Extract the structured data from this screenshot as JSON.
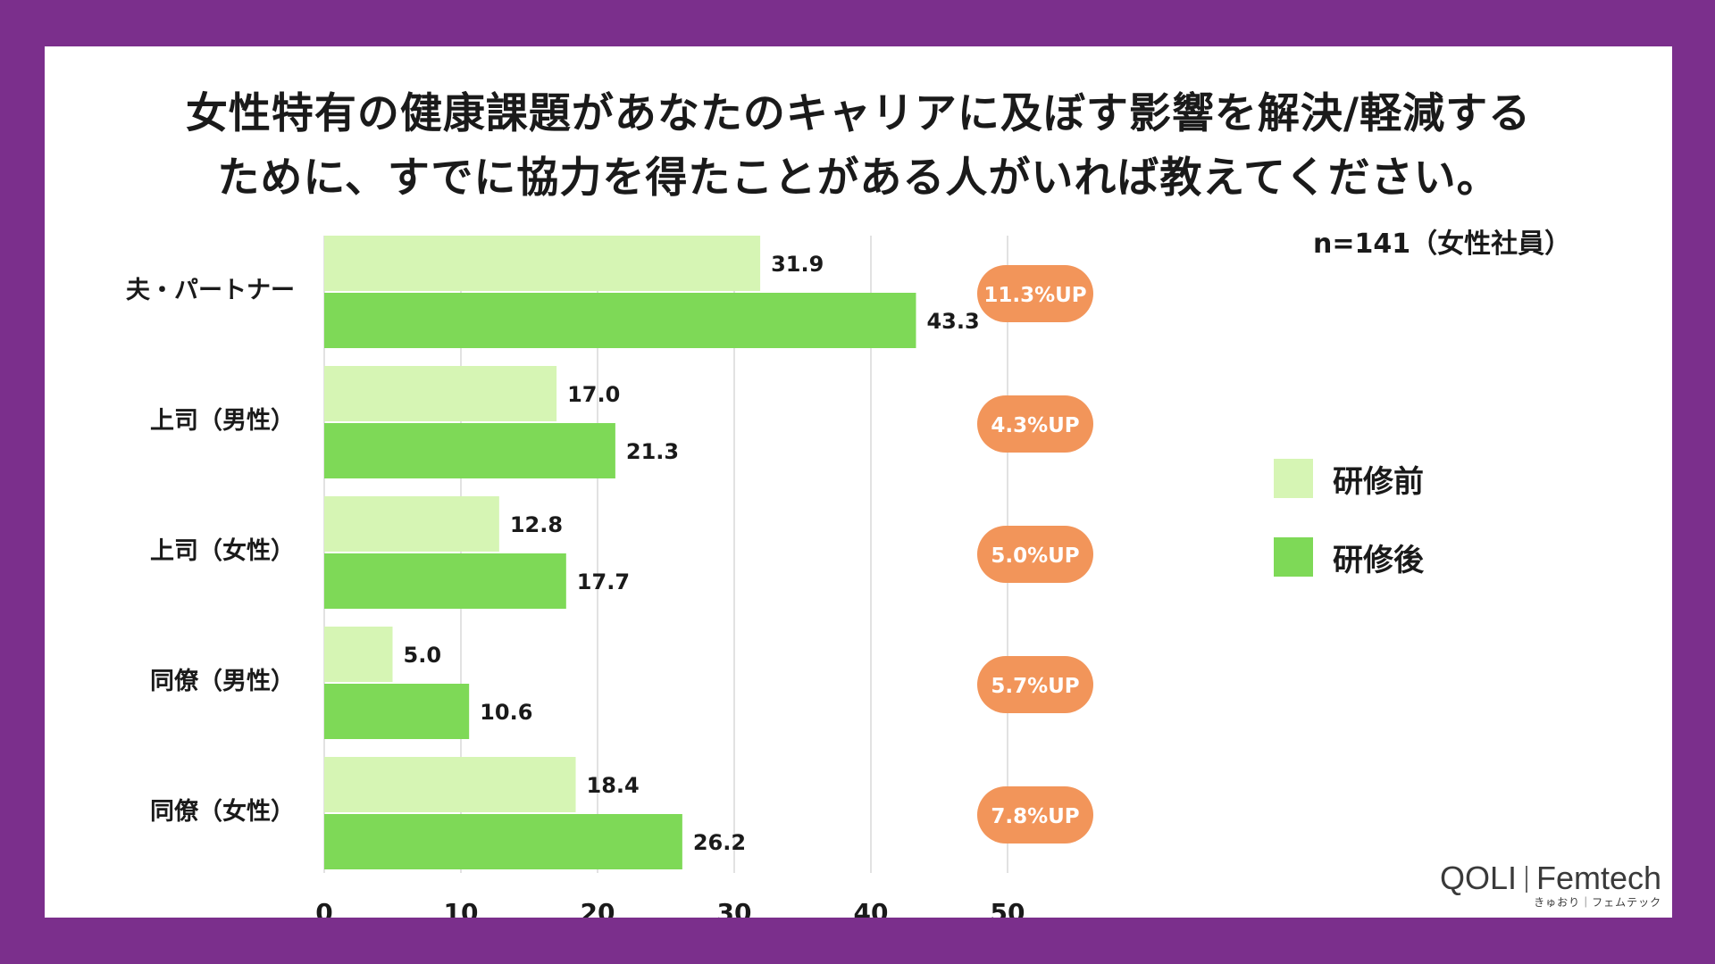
{
  "title": {
    "line1": "女性特有の健康課題があなたのキャリアに及ぼす影響を解決/軽減する",
    "line2": "ために、すでに協力を得たことがある人がいれば教えてください。"
  },
  "sample_note": "n=141（女性社員）",
  "legend": {
    "before": "研修前",
    "after": "研修後"
  },
  "brand": {
    "name": "QOLI",
    "product": "Femtech",
    "sub": "きゅおり｜フェムテック"
  },
  "colors": {
    "background": "#7b2f8c",
    "before": "#d6f5b4",
    "after": "#7ed957",
    "badge": "#f2955a",
    "grid": "#d9d9d9"
  },
  "chart_data": {
    "type": "bar",
    "orientation": "horizontal",
    "categories": [
      "夫・パートナー",
      "上司（男性）",
      "上司（女性）",
      "同僚（男性）",
      "同僚（女性）"
    ],
    "series": [
      {
        "name": "研修前",
        "values": [
          31.9,
          17.0,
          12.8,
          5.0,
          18.4
        ],
        "labels": [
          "31.9",
          "17.0",
          "12.8",
          "5.0",
          "18.4"
        ]
      },
      {
        "name": "研修後",
        "values": [
          43.3,
          21.3,
          17.7,
          10.6,
          26.2
        ],
        "labels": [
          "43.3",
          "21.3",
          "17.7",
          "10.6",
          "26.2"
        ]
      }
    ],
    "increase_labels": [
      "11.3%UP",
      "4.3%UP",
      "5.0%UP",
      "5.7%UP",
      "7.8%UP"
    ],
    "xlim": [
      0,
      50
    ],
    "xticks": [
      0,
      10,
      20,
      30,
      40,
      50
    ],
    "xtick_labels": [
      "0",
      "10",
      "20",
      "30",
      "40",
      "50"
    ],
    "grid": true,
    "legend_position": "right"
  }
}
